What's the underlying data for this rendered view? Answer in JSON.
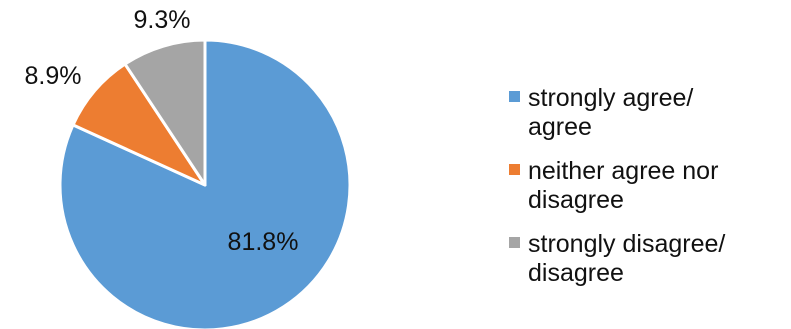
{
  "chart_data": {
    "type": "pie",
    "title": "",
    "categories": [
      "strongly agree/ agree",
      "neither agree nor disagree",
      "strongly disagree/ disagree"
    ],
    "values": [
      81.8,
      8.9,
      9.3
    ],
    "value_labels": [
      "81.8%",
      "8.9%",
      "9.3%"
    ],
    "colors": [
      "#5B9BD5",
      "#ED7D31",
      "#A5A5A5"
    ],
    "legend_position": "right",
    "legend_lines": [
      [
        "strongly agree/",
        "agree"
      ],
      [
        "neither agree nor",
        "disagree"
      ],
      [
        "strongly disagree/",
        "disagree"
      ]
    ]
  }
}
